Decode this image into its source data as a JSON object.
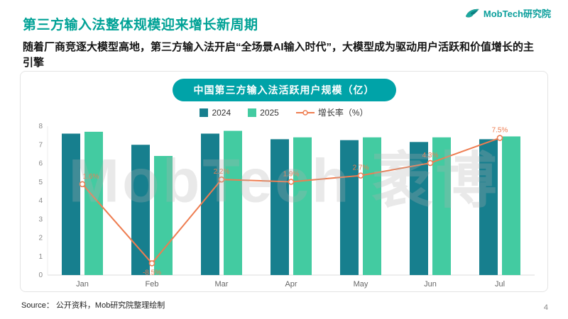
{
  "header": {
    "title": "第三方输入法整体规模迎来增长新周期",
    "subtitle": "随着厂商竞逐大模型高地，第三方输入法开启“全场景AI输入时代”，大模型成为驱动用户活跃和价值增长的主引擎",
    "logo_text": "MobTech研究院"
  },
  "chart": {
    "badge_title": "中国第三方输入法活跃用户规模（亿）",
    "watermark": "MobTech 袤博"
  },
  "chart_data": {
    "type": "bar",
    "title": "中国第三方输入法活跃用户规模（亿）",
    "categories": [
      "Jan",
      "Feb",
      "Mar",
      "Apr",
      "May",
      "Jun",
      "Jul"
    ],
    "series": [
      {
        "name": "2024",
        "type": "bar",
        "color": "#177F8E",
        "values": [
          7.6,
          7.0,
          7.6,
          7.3,
          7.25,
          7.15,
          7.3
        ]
      },
      {
        "name": "2025",
        "type": "bar",
        "color": "#43CBA1",
        "values": [
          7.7,
          6.4,
          7.75,
          7.4,
          7.4,
          7.4,
          7.45
        ]
      },
      {
        "name": "增长率（%）",
        "type": "line",
        "color": "#EE7D51",
        "values": [
          1.6,
          -8.5,
          2.2,
          1.9,
          2.7,
          4.3,
          7.5
        ],
        "labels": [
          "1.6%",
          "-8.5%",
          "2.2%",
          "1.9%",
          "2.7%",
          "4.3%",
          "7.5%"
        ],
        "secondary_axis_range": [
          -10,
          9
        ]
      }
    ],
    "ylim": [
      0,
      8
    ],
    "yticks": [
      0,
      1,
      2,
      3,
      4,
      5,
      6,
      7,
      8
    ],
    "xlabel": "",
    "ylabel": "",
    "grid": false,
    "legend_position": "top"
  },
  "footer": {
    "source": "Source：  公开资料，Mob研究院整理绘制",
    "page": "4"
  }
}
